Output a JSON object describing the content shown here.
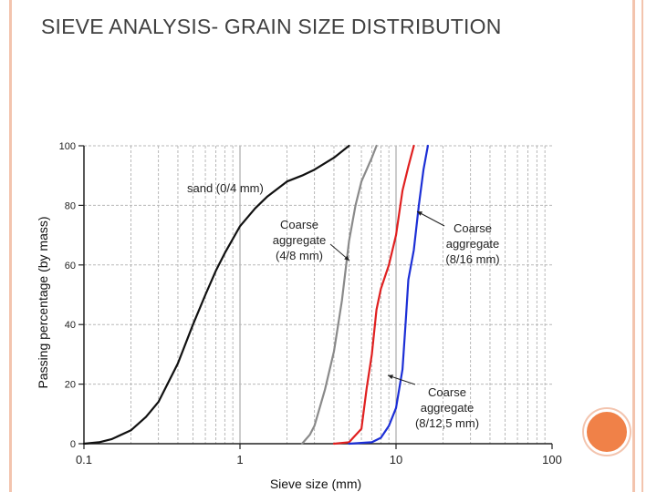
{
  "slide": {
    "title": "SIEVE ANALYSIS- GRAIN SIZE DISTRIBUTION"
  },
  "colors": {
    "frame": "#f3c4ae",
    "accent_circle": "#f08148",
    "sand": "#111111",
    "coarse_4_8": "#8a8a8a",
    "coarse_8_12_5": "#e02020",
    "coarse_8_16": "#1c2fd6"
  },
  "chart_data": {
    "type": "line",
    "title": "",
    "xlabel": "Sieve size (mm)",
    "ylabel": "Passing percentage (by mass)",
    "xscale": "log",
    "xlim": [
      0.1,
      100
    ],
    "ylim": [
      0,
      100
    ],
    "grid": true,
    "xticks": [
      {
        "value": 0.1,
        "label": "0.1"
      },
      {
        "value": 1,
        "label": "1"
      },
      {
        "value": 10,
        "label": "10"
      },
      {
        "value": 100,
        "label": "100"
      }
    ],
    "yticks": [
      {
        "value": 0,
        "label": "0"
      },
      {
        "value": 20,
        "label": "20"
      },
      {
        "value": 40,
        "label": "40"
      },
      {
        "value": 60,
        "label": "60"
      },
      {
        "value": 80,
        "label": "80"
      },
      {
        "value": 100,
        "label": "100"
      }
    ],
    "series": [
      {
        "name": "sand (0/4 mm)",
        "color": "#111111",
        "points": [
          [
            0.1,
            0
          ],
          [
            0.125,
            0.5
          ],
          [
            0.15,
            1.5
          ],
          [
            0.2,
            4.5
          ],
          [
            0.25,
            9
          ],
          [
            0.3,
            14
          ],
          [
            0.4,
            27
          ],
          [
            0.5,
            40
          ],
          [
            0.6,
            50
          ],
          [
            0.7,
            58
          ],
          [
            0.8,
            64
          ],
          [
            1,
            73
          ],
          [
            1.25,
            79
          ],
          [
            1.5,
            83
          ],
          [
            2,
            88
          ],
          [
            2.5,
            90
          ],
          [
            3,
            92
          ],
          [
            4,
            96
          ],
          [
            5,
            100
          ]
        ]
      },
      {
        "name": "Coarse aggregate (4/8 mm)",
        "color": "#8a8a8a",
        "points": [
          [
            2.5,
            0
          ],
          [
            2.8,
            3
          ],
          [
            3,
            6
          ],
          [
            3.5,
            18
          ],
          [
            4,
            31
          ],
          [
            4.5,
            48
          ],
          [
            5,
            68
          ],
          [
            5.5,
            80
          ],
          [
            6,
            88
          ],
          [
            7,
            96
          ],
          [
            7.5,
            100
          ]
        ]
      },
      {
        "name": "Coarse aggregate (8/12,5 mm)",
        "color": "#e02020",
        "points": [
          [
            4,
            0
          ],
          [
            5,
            0.5
          ],
          [
            6,
            5
          ],
          [
            6.5,
            19
          ],
          [
            7,
            30
          ],
          [
            7.5,
            45
          ],
          [
            8,
            52
          ],
          [
            9,
            60
          ],
          [
            10,
            70
          ],
          [
            11,
            85
          ],
          [
            12,
            93
          ],
          [
            13,
            100
          ]
        ]
      },
      {
        "name": "Coarse aggregate (8/16 mm)",
        "color": "#1c2fd6",
        "points": [
          [
            5,
            0
          ],
          [
            7,
            0.5
          ],
          [
            8,
            2
          ],
          [
            9,
            6
          ],
          [
            10,
            12
          ],
          [
            11,
            25
          ],
          [
            11.5,
            40
          ],
          [
            12,
            55
          ],
          [
            13,
            65
          ],
          [
            14,
            80
          ],
          [
            15,
            92
          ],
          [
            16,
            100
          ]
        ]
      }
    ],
    "annotations": [
      {
        "lines": [
          "sand (0/4 mm)"
        ]
      },
      {
        "lines": [
          "Coarse",
          "aggregate",
          "(4/8 mm)"
        ]
      },
      {
        "lines": [
          "Coarse",
          "aggregate",
          "(8/16 mm)"
        ]
      },
      {
        "lines": [
          "Coarse",
          "aggregate",
          "(8/12,5 mm)"
        ]
      }
    ]
  }
}
